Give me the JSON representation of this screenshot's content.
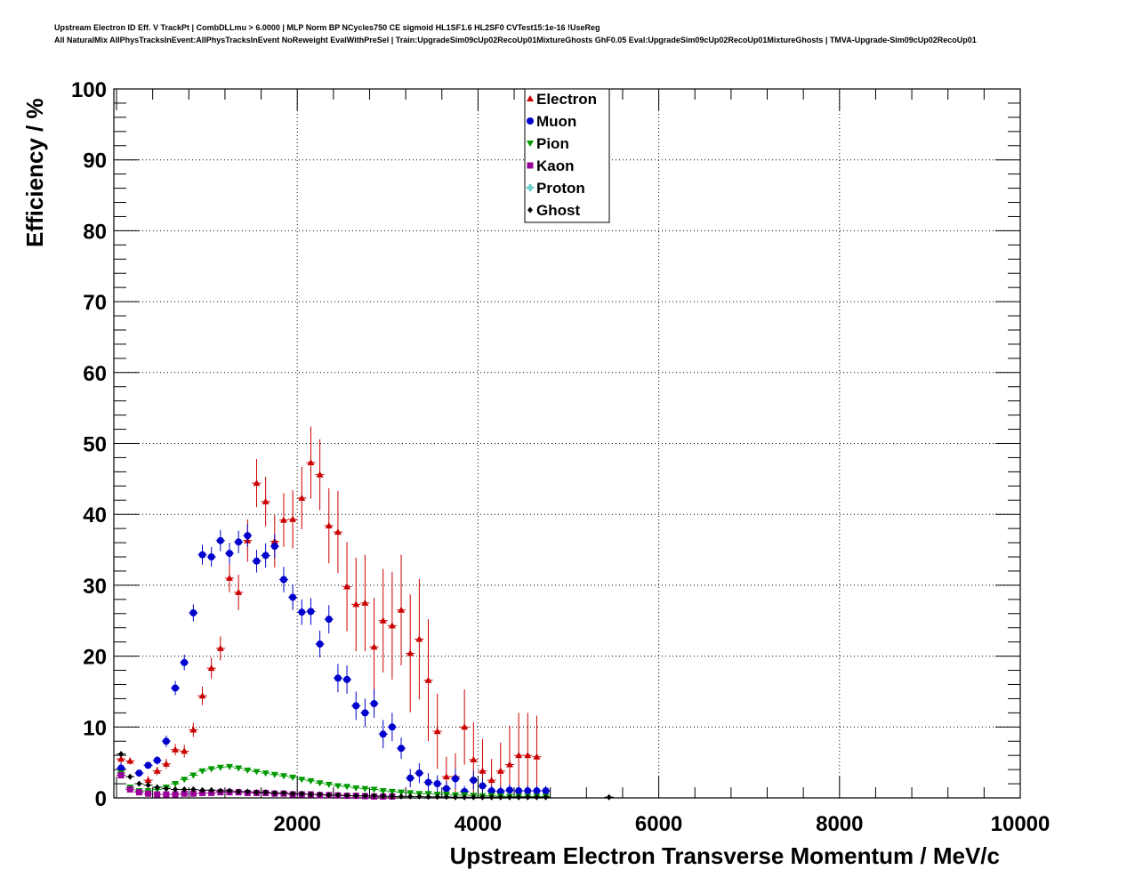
{
  "chart_data": {
    "type": "scatter",
    "title_lines": [
      "Upstream Electron ID Eff. V TrackPt | CombDLLmu > 6.0000 | MLP Norm BP NCycles750 CE sigmoid HL1SF1.6 HL2SF0 CVTest15:1e-16 !UseReg",
      "All NaturalMix AllPhysTracksInEvent:AllPhysTracksInEvent NoReweight EvalWithPreSel | Train:UpgradeSim09cUp02RecoUp01MixtureGhosts GhF0.05 Eval:UpgradeSim09cUp02RecoUp01MixtureGhosts | TMVA-Upgrade-Sim09cUp02RecoUp01"
    ],
    "xlabel": "Upstream Electron Transverse Momentum / MeV/c",
    "ylabel": "Efficiency / %",
    "xlim": [
      0,
      10000
    ],
    "ylim": [
      0,
      100
    ],
    "xticks": [
      2000,
      4000,
      6000,
      8000,
      10000
    ],
    "xtick_labels": [
      "2000",
      "4000",
      "6000",
      "8000",
      "10000"
    ],
    "yticks": [
      0,
      10,
      20,
      30,
      40,
      50,
      60,
      70,
      80,
      90,
      100
    ],
    "ytick_labels": [
      "0",
      "10",
      "20",
      "30",
      "40",
      "50",
      "60",
      "70",
      "80",
      "90",
      "100"
    ],
    "grid": true,
    "legend_position": "top-center",
    "series": [
      {
        "name": "Electron",
        "color": "#cc0000",
        "marker": "triangle-up",
        "x": [
          50,
          150,
          350,
          450,
          550,
          650,
          750,
          850,
          950,
          1050,
          1150,
          1250,
          1350,
          1450,
          1550,
          1650,
          1750,
          1850,
          1950,
          2050,
          2150,
          2250,
          2350,
          2450,
          2550,
          2650,
          2750,
          2850,
          2950,
          3050,
          3150,
          3250,
          3350,
          3450,
          3550,
          3650,
          3750,
          3850,
          3950,
          4050,
          4150,
          4250,
          4350,
          4450,
          4550,
          4650
        ],
        "y": [
          5.5,
          5.2,
          2.5,
          3.8,
          4.8,
          6.8,
          6.6,
          9.6,
          14.4,
          18.3,
          21.1,
          31.0,
          29.0,
          36.3,
          44.4,
          41.8,
          36.2,
          39.2,
          39.3,
          42.3,
          47.3,
          45.6,
          38.4,
          37.5,
          29.8,
          27.3,
          27.5,
          21.3,
          25.0,
          24.3,
          26.5,
          20.4,
          22.4,
          16.6,
          9.4,
          3.0,
          3.0,
          10.0,
          5.4,
          3.8,
          2.5,
          3.8,
          4.7,
          6.0,
          6.0,
          5.8
        ],
        "err": [
          0.6,
          0.5,
          0.6,
          0.6,
          0.7,
          0.8,
          0.9,
          1.0,
          1.3,
          1.5,
          1.7,
          2.0,
          2.5,
          3.0,
          3.4,
          3.5,
          3.7,
          3.8,
          4.1,
          4.4,
          5.1,
          5.0,
          5.3,
          5.8,
          6.3,
          6.6,
          6.8,
          6.9,
          7.3,
          7.6,
          7.8,
          8.3,
          8.5,
          8.6,
          5.3,
          2.8,
          3.3,
          5.3,
          5.3,
          4.5,
          3.0,
          4.0,
          5.5,
          6.0,
          6.0,
          5.8
        ]
      },
      {
        "name": "Muon",
        "color": "#0000cc",
        "marker": "circle",
        "x": [
          50,
          250,
          350,
          450,
          550,
          650,
          750,
          850,
          950,
          1050,
          1150,
          1250,
          1350,
          1450,
          1550,
          1650,
          1750,
          1850,
          1950,
          2050,
          2150,
          2250,
          2350,
          2450,
          2550,
          2650,
          2750,
          2850,
          2950,
          3050,
          3150,
          3250,
          3350,
          3450,
          3550,
          3650,
          3750,
          3850,
          3950,
          4050,
          4150,
          4250,
          4350,
          4450,
          4550,
          4650,
          4750
        ],
        "y": [
          4.2,
          3.5,
          4.6,
          5.3,
          8.0,
          15.5,
          19.1,
          26.1,
          34.3,
          34.0,
          36.3,
          34.5,
          36.1,
          37.0,
          33.4,
          34.2,
          35.5,
          30.8,
          28.3,
          26.2,
          26.3,
          21.7,
          25.2,
          16.9,
          16.7,
          13.0,
          12.0,
          13.3,
          9.0,
          10.0,
          7.0,
          2.8,
          3.5,
          2.2,
          2.0,
          1.3,
          2.7,
          0.9,
          2.5,
          1.7,
          1.0,
          0.9,
          1.1,
          1.0,
          1.0,
          1.0,
          1.0
        ],
        "err": [
          0.8,
          0.5,
          0.5,
          0.6,
          0.8,
          1.0,
          1.1,
          1.2,
          1.4,
          1.4,
          1.5,
          1.5,
          1.6,
          1.6,
          1.6,
          1.7,
          1.7,
          1.8,
          1.8,
          1.8,
          1.9,
          1.9,
          2.0,
          2.0,
          2.0,
          2.0,
          2.0,
          2.0,
          2.0,
          2.0,
          1.5,
          1.3,
          1.4,
          1.3,
          1.2,
          1.0,
          1.4,
          0.8,
          1.3,
          1.0,
          0.7,
          0.7,
          0.8,
          0.7,
          0.7,
          0.7,
          0.7
        ]
      },
      {
        "name": "Pion",
        "color": "#009900",
        "marker": "triangle-down",
        "x": [
          50,
          150,
          250,
          350,
          450,
          550,
          650,
          750,
          850,
          950,
          1050,
          1150,
          1250,
          1350,
          1450,
          1550,
          1650,
          1750,
          1850,
          1950,
          2050,
          2150,
          2250,
          2350,
          2450,
          2550,
          2650,
          2750,
          2850,
          2950,
          3050,
          3150,
          3250,
          3350,
          3450,
          3550,
          3650,
          3750,
          3850,
          3950,
          4050,
          4150,
          4250,
          4350,
          4450,
          4550,
          4650,
          4750
        ],
        "y": [
          3.5,
          1.5,
          1.0,
          1.0,
          1.2,
          1.5,
          2.0,
          2.6,
          3.2,
          3.8,
          4.1,
          4.3,
          4.4,
          4.2,
          3.9,
          3.7,
          3.5,
          3.3,
          3.1,
          2.9,
          2.6,
          2.4,
          2.1,
          1.9,
          1.7,
          1.6,
          1.4,
          1.3,
          1.2,
          1.0,
          0.9,
          0.8,
          0.7,
          0.6,
          0.6,
          0.5,
          0.5,
          0.4,
          0.4,
          0.35,
          0.3,
          0.3,
          0.25,
          0.2,
          0.2,
          0.2,
          0.2,
          0.2
        ],
        "err": [
          0.3,
          0.1,
          0.1,
          0.1,
          0.1,
          0.1,
          0.1,
          0.1,
          0.1,
          0.1,
          0.1,
          0.1,
          0.1,
          0.1,
          0.1,
          0.1,
          0.1,
          0.1,
          0.1,
          0.1,
          0.1,
          0.1,
          0.1,
          0.1,
          0.1,
          0.1,
          0.1,
          0.1,
          0.1,
          0.1,
          0.1,
          0.1,
          0.1,
          0.1,
          0.1,
          0.1,
          0.1,
          0.1,
          0.1,
          0.1,
          0.1,
          0.1,
          0.1,
          0.1,
          0.1,
          0.1,
          0.1,
          0.1
        ]
      },
      {
        "name": "Kaon",
        "color": "#990099",
        "marker": "square",
        "x": [
          50,
          150,
          250,
          350,
          450,
          550,
          650,
          750,
          850,
          950,
          1050,
          1150,
          1250,
          1350,
          1450,
          1550,
          1650,
          1750,
          1850,
          1950,
          2050,
          2150,
          2250,
          2350,
          2450,
          2550,
          2650,
          2750,
          2850,
          2950,
          3050
        ],
        "y": [
          3.2,
          1.2,
          0.8,
          0.6,
          0.5,
          0.5,
          0.5,
          0.6,
          0.6,
          0.7,
          0.7,
          0.8,
          0.8,
          0.8,
          0.7,
          0.7,
          0.7,
          0.6,
          0.6,
          0.5,
          0.5,
          0.5,
          0.4,
          0.4,
          0.35,
          0.3,
          0.3,
          0.25,
          0.2,
          0.2,
          0.2
        ],
        "err": [
          0.3,
          0.1,
          0.1,
          0.1,
          0.1,
          0.1,
          0.1,
          0.1,
          0.1,
          0.1,
          0.1,
          0.1,
          0.1,
          0.1,
          0.1,
          0.1,
          0.1,
          0.1,
          0.1,
          0.1,
          0.1,
          0.1,
          0.1,
          0.1,
          0.1,
          0.1,
          0.1,
          0.1,
          0.1,
          0.1,
          0.1
        ]
      },
      {
        "name": "Proton",
        "color": "#66cccc",
        "marker": "cross",
        "x": [],
        "y": [],
        "err": []
      },
      {
        "name": "Ghost",
        "color": "#000000",
        "marker": "diamond",
        "x": [
          50,
          150,
          250,
          350,
          450,
          550,
          650,
          750,
          850,
          950,
          1050,
          1150,
          1250,
          1350,
          1450,
          1550,
          1650,
          1750,
          1850,
          1950,
          2050,
          2150,
          2250,
          2350,
          2450,
          2550,
          2650,
          2750,
          2850,
          2950,
          3050,
          3150,
          3250,
          3350,
          3450,
          3550,
          3650,
          3750,
          3850,
          3950,
          4050,
          4150,
          4250,
          4350,
          4450,
          4550,
          4650,
          4750,
          5450
        ],
        "y": [
          6.2,
          3.0,
          2.0,
          1.8,
          1.5,
          1.3,
          1.2,
          1.2,
          1.2,
          1.1,
          1.1,
          1.0,
          1.0,
          0.9,
          0.9,
          0.8,
          0.8,
          0.7,
          0.7,
          0.6,
          0.6,
          0.5,
          0.5,
          0.4,
          0.4,
          0.35,
          0.3,
          0.3,
          0.3,
          0.25,
          0.2,
          0.2,
          0.2,
          0.2,
          0.15,
          0.15,
          0.15,
          0.1,
          0.1,
          0.1,
          0.1,
          0.1,
          0.1,
          0.1,
          0.1,
          0.1,
          0.1,
          0.1,
          0.1
        ],
        "err": [
          0.3,
          0.2,
          0.2,
          0.2,
          0.2,
          0.2,
          0.2,
          0.2,
          0.2,
          0.2,
          0.2,
          0.2,
          0.2,
          0.2,
          0.2,
          0.2,
          0.2,
          0.2,
          0.2,
          0.2,
          0.2,
          0.2,
          0.2,
          0.2,
          0.2,
          0.2,
          0.2,
          0.2,
          0.2,
          0.2,
          0.2,
          0.2,
          0.2,
          0.2,
          0.2,
          0.2,
          0.2,
          0.2,
          0.2,
          0.2,
          0.2,
          0.2,
          0.2,
          0.2,
          0.2,
          0.2,
          0.2,
          0.2,
          0.2
        ]
      }
    ]
  }
}
